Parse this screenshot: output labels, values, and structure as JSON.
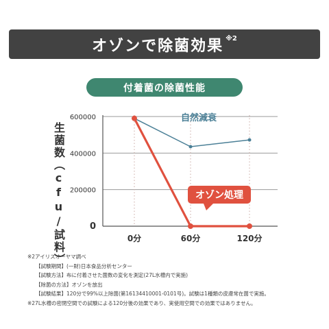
{
  "banner": {
    "title": "オゾンで除菌効果",
    "note": "※2"
  },
  "chart_title": "付着菌の除菌性能",
  "chart_data": {
    "type": "line",
    "ylabel": "生菌数（cfu/試料）",
    "categories": [
      "0分",
      "60分",
      "120分"
    ],
    "yticks": [
      "600000",
      "400000",
      "200000",
      "0"
    ],
    "ytick_values": [
      600000,
      400000,
      200000,
      0
    ],
    "ylim": [
      0,
      600000
    ],
    "grid": true,
    "series": [
      {
        "name": "自然減衰",
        "values": [
          590000,
          435000,
          472000
        ],
        "color": "#4a7f96"
      },
      {
        "name": "オゾン処理",
        "values": [
          590000,
          0,
          0
        ],
        "color": "#e0513f"
      }
    ]
  },
  "footnotes": {
    "line1": "※2アイリスオーヤマ調べ",
    "line2": "【試験期間】(一財)日本食品分析センター",
    "line3": "【試験方法】布に付着させた菌数の変化を測定(27L水槽内で実施)",
    "line4": "【除菌の方法】オゾンを放出",
    "line5": "【試験結果】120分で99%以上除菌(第16134410001-0101号)。試験は1種類の皮膚常在菌で実施。",
    "line6": "※27L水槽の密閉空間での試験による120分後の効果であり、実使用空間での効果ではありません。"
  }
}
